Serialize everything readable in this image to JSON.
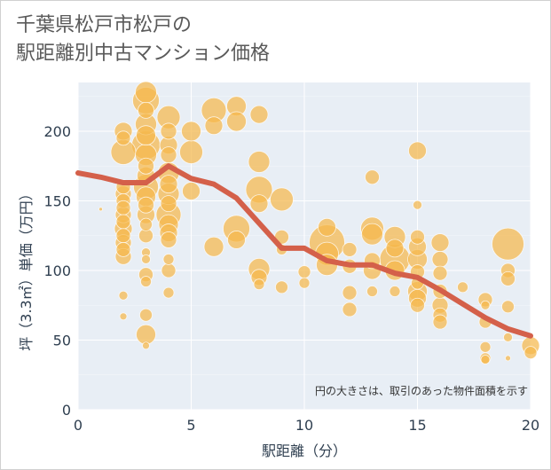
{
  "title": {
    "line1": "千葉県松戸市松戸の",
    "line2": "駅距離別中古マンション価格"
  },
  "colors": {
    "bubble": "#f5b94c",
    "line": "#d4604a",
    "plot_bg": "#e8eef5",
    "grid": "#ffffff"
  },
  "chart_data": {
    "type": "scatter",
    "title": "千葉県松戸市松戸の駅距離別中古マンション価格",
    "xlabel": "駅距離（分）",
    "ylabel": "坪（3.3㎡）単価（万円）",
    "xlim": [
      0,
      20
    ],
    "ylim": [
      0,
      235
    ],
    "xticks": [
      0,
      5,
      10,
      15,
      20
    ],
    "yticks": [
      0,
      50,
      100,
      150,
      200
    ],
    "xtick_labels": [
      "0",
      "5",
      "10",
      "15",
      "20"
    ],
    "ytick_labels": [
      "0",
      "50",
      "100",
      "150",
      "200"
    ],
    "grid": true,
    "annotation": "円の大きさは、取引のあった物件面積を示す",
    "series": [
      {
        "kind": "bubble",
        "points": [
          {
            "x": 1,
            "y": 144,
            "s": 2
          },
          {
            "x": 2,
            "y": 200,
            "s": 10
          },
          {
            "x": 2,
            "y": 195,
            "s": 8
          },
          {
            "x": 2,
            "y": 185,
            "s": 14
          },
          {
            "x": 2,
            "y": 160,
            "s": 8
          },
          {
            "x": 2,
            "y": 155,
            "s": 9
          },
          {
            "x": 2,
            "y": 150,
            "s": 8
          },
          {
            "x": 2,
            "y": 145,
            "s": 8
          },
          {
            "x": 2,
            "y": 140,
            "s": 9
          },
          {
            "x": 2,
            "y": 135,
            "s": 8
          },
          {
            "x": 2,
            "y": 130,
            "s": 10
          },
          {
            "x": 2,
            "y": 125,
            "s": 8
          },
          {
            "x": 2,
            "y": 120,
            "s": 9
          },
          {
            "x": 2,
            "y": 115,
            "s": 8
          },
          {
            "x": 2,
            "y": 110,
            "s": 9
          },
          {
            "x": 2,
            "y": 82,
            "s": 5
          },
          {
            "x": 2,
            "y": 67,
            "s": 4
          },
          {
            "x": 3,
            "y": 228,
            "s": 12
          },
          {
            "x": 3,
            "y": 222,
            "s": 15
          },
          {
            "x": 3,
            "y": 215,
            "s": 9
          },
          {
            "x": 3,
            "y": 205,
            "s": 12
          },
          {
            "x": 3,
            "y": 197,
            "s": 11
          },
          {
            "x": 3,
            "y": 190,
            "s": 16
          },
          {
            "x": 3,
            "y": 183,
            "s": 12
          },
          {
            "x": 3,
            "y": 175,
            "s": 9
          },
          {
            "x": 3,
            "y": 168,
            "s": 10
          },
          {
            "x": 3,
            "y": 160,
            "s": 14
          },
          {
            "x": 3,
            "y": 153,
            "s": 11
          },
          {
            "x": 3,
            "y": 147,
            "s": 9
          },
          {
            "x": 3,
            "y": 140,
            "s": 10
          },
          {
            "x": 3,
            "y": 133,
            "s": 7
          },
          {
            "x": 3,
            "y": 125,
            "s": 8
          },
          {
            "x": 3,
            "y": 113,
            "s": 5
          },
          {
            "x": 3,
            "y": 108,
            "s": 5
          },
          {
            "x": 3,
            "y": 97,
            "s": 8
          },
          {
            "x": 3,
            "y": 92,
            "s": 6
          },
          {
            "x": 3,
            "y": 68,
            "s": 7
          },
          {
            "x": 3,
            "y": 54,
            "s": 11
          },
          {
            "x": 3,
            "y": 46,
            "s": 4
          },
          {
            "x": 4,
            "y": 210,
            "s": 13
          },
          {
            "x": 4,
            "y": 200,
            "s": 9
          },
          {
            "x": 4,
            "y": 190,
            "s": 10
          },
          {
            "x": 4,
            "y": 183,
            "s": 9
          },
          {
            "x": 4,
            "y": 170,
            "s": 12
          },
          {
            "x": 4,
            "y": 162,
            "s": 10
          },
          {
            "x": 4,
            "y": 155,
            "s": 12
          },
          {
            "x": 4,
            "y": 148,
            "s": 9
          },
          {
            "x": 4,
            "y": 140,
            "s": 14
          },
          {
            "x": 4,
            "y": 133,
            "s": 11
          },
          {
            "x": 4,
            "y": 127,
            "s": 10
          },
          {
            "x": 4,
            "y": 122,
            "s": 9
          },
          {
            "x": 4,
            "y": 108,
            "s": 6
          },
          {
            "x": 4,
            "y": 100,
            "s": 8
          },
          {
            "x": 4,
            "y": 84,
            "s": 6
          },
          {
            "x": 5,
            "y": 200,
            "s": 11
          },
          {
            "x": 5,
            "y": 185,
            "s": 13
          },
          {
            "x": 5,
            "y": 157,
            "s": 10
          },
          {
            "x": 6,
            "y": 215,
            "s": 14
          },
          {
            "x": 6,
            "y": 204,
            "s": 10
          },
          {
            "x": 6,
            "y": 117,
            "s": 11
          },
          {
            "x": 7,
            "y": 218,
            "s": 11
          },
          {
            "x": 7,
            "y": 207,
            "s": 11
          },
          {
            "x": 7,
            "y": 130,
            "s": 15
          },
          {
            "x": 7,
            "y": 122,
            "s": 10
          },
          {
            "x": 8,
            "y": 212,
            "s": 10
          },
          {
            "x": 8,
            "y": 178,
            "s": 12
          },
          {
            "x": 8,
            "y": 158,
            "s": 15
          },
          {
            "x": 8,
            "y": 148,
            "s": 10
          },
          {
            "x": 8,
            "y": 101,
            "s": 12
          },
          {
            "x": 8,
            "y": 95,
            "s": 9
          },
          {
            "x": 8,
            "y": 90,
            "s": 6
          },
          {
            "x": 9,
            "y": 151,
            "s": 13
          },
          {
            "x": 9,
            "y": 124,
            "s": 8
          },
          {
            "x": 9,
            "y": 115,
            "s": 6
          },
          {
            "x": 9,
            "y": 88,
            "s": 7
          },
          {
            "x": 10,
            "y": 99,
            "s": 7
          },
          {
            "x": 10,
            "y": 91,
            "s": 6
          },
          {
            "x": 11,
            "y": 131,
            "s": 10
          },
          {
            "x": 11,
            "y": 120,
            "s": 20
          },
          {
            "x": 11,
            "y": 112,
            "s": 13
          },
          {
            "x": 11,
            "y": 104,
            "s": 12
          },
          {
            "x": 12,
            "y": 115,
            "s": 8
          },
          {
            "x": 12,
            "y": 103,
            "s": 8
          },
          {
            "x": 12,
            "y": 84,
            "s": 8
          },
          {
            "x": 12,
            "y": 72,
            "s": 8
          },
          {
            "x": 13,
            "y": 167,
            "s": 8
          },
          {
            "x": 13,
            "y": 130,
            "s": 13
          },
          {
            "x": 13,
            "y": 126,
            "s": 12
          },
          {
            "x": 13,
            "y": 107,
            "s": 9
          },
          {
            "x": 13,
            "y": 100,
            "s": 10
          },
          {
            "x": 13,
            "y": 85,
            "s": 6
          },
          {
            "x": 14,
            "y": 124,
            "s": 12
          },
          {
            "x": 14,
            "y": 116,
            "s": 10
          },
          {
            "x": 14,
            "y": 108,
            "s": 17
          },
          {
            "x": 14,
            "y": 100,
            "s": 11
          },
          {
            "x": 14,
            "y": 85,
            "s": 6
          },
          {
            "x": 15,
            "y": 186,
            "s": 10
          },
          {
            "x": 15,
            "y": 147,
            "s": 5
          },
          {
            "x": 15,
            "y": 124,
            "s": 8
          },
          {
            "x": 15,
            "y": 117,
            "s": 10
          },
          {
            "x": 15,
            "y": 108,
            "s": 11
          },
          {
            "x": 15,
            "y": 99,
            "s": 8
          },
          {
            "x": 15,
            "y": 91,
            "s": 7
          },
          {
            "x": 15,
            "y": 85,
            "s": 11
          },
          {
            "x": 15,
            "y": 80,
            "s": 10
          },
          {
            "x": 15,
            "y": 75,
            "s": 8
          },
          {
            "x": 16,
            "y": 120,
            "s": 10
          },
          {
            "x": 16,
            "y": 108,
            "s": 9
          },
          {
            "x": 16,
            "y": 98,
            "s": 8
          },
          {
            "x": 16,
            "y": 85,
            "s": 8
          },
          {
            "x": 16,
            "y": 75,
            "s": 9
          },
          {
            "x": 16,
            "y": 68,
            "s": 8
          },
          {
            "x": 16,
            "y": 63,
            "s": 8
          },
          {
            "x": 17,
            "y": 88,
            "s": 6
          },
          {
            "x": 18,
            "y": 79,
            "s": 8
          },
          {
            "x": 18,
            "y": 75,
            "s": 5
          },
          {
            "x": 18,
            "y": 63,
            "s": 7
          },
          {
            "x": 18,
            "y": 45,
            "s": 6
          },
          {
            "x": 18,
            "y": 37,
            "s": 6
          },
          {
            "x": 18,
            "y": 36,
            "s": 5
          },
          {
            "x": 19,
            "y": 119,
            "s": 18
          },
          {
            "x": 19,
            "y": 100,
            "s": 8
          },
          {
            "x": 19,
            "y": 94,
            "s": 8
          },
          {
            "x": 19,
            "y": 74,
            "s": 7
          },
          {
            "x": 19,
            "y": 52,
            "s": 5
          },
          {
            "x": 19,
            "y": 37,
            "s": 3
          },
          {
            "x": 20,
            "y": 46,
            "s": 10
          },
          {
            "x": 20,
            "y": 41,
            "s": 7
          }
        ]
      },
      {
        "kind": "line",
        "x": [
          0,
          1,
          2,
          3,
          4,
          5,
          6,
          7,
          8,
          9,
          10,
          11,
          12,
          13,
          14,
          15,
          16,
          17,
          18,
          19,
          20
        ],
        "values": [
          170,
          167,
          163,
          163,
          175,
          166,
          162,
          152,
          134,
          116,
          116,
          107,
          104,
          104,
          98,
          95,
          86,
          76,
          66,
          58,
          53
        ]
      }
    ]
  }
}
